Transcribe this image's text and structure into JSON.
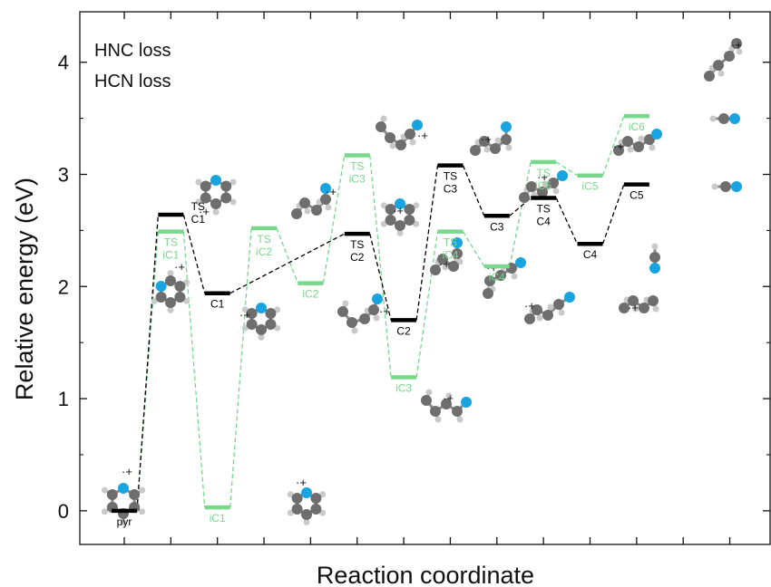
{
  "chart_data": {
    "type": "energy-level-diagram",
    "xlabel": "Reaction coordinate",
    "ylabel": "Relative energy (eV)",
    "ylim": [
      -0.3,
      4.45
    ],
    "yticks": [
      0,
      1,
      2,
      3,
      4
    ],
    "x_slots": 14,
    "colors": {
      "hnc": "#77d88c",
      "hcn": "#000000",
      "atom_c": "#6e6e6e",
      "atom_n": "#18a4e0",
      "atom_h": "#c9c9c9"
    },
    "legend": [
      {
        "label": "HNC loss",
        "color": "#77d88c"
      },
      {
        "label": "HCN loss",
        "color": "#000000"
      }
    ],
    "series": [
      {
        "name": "HNC loss",
        "color": "#77d88c",
        "levels": [
          {
            "id": "pyr",
            "x": 1,
            "y": 0.0,
            "label": []
          },
          {
            "id": "ts-ic1",
            "x": 2,
            "y": 2.49,
            "label": [
              "TS",
              "iC1"
            ]
          },
          {
            "id": "ic1",
            "x": 3,
            "y": 0.03,
            "label": [
              "iC1"
            ]
          },
          {
            "id": "ts-ic2",
            "x": 4,
            "y": 2.52,
            "label": [
              "TS",
              "iC2"
            ]
          },
          {
            "id": "ic2",
            "x": 5,
            "y": 2.03,
            "label": [
              "iC2"
            ]
          },
          {
            "id": "ts-ic3",
            "x": 6,
            "y": 3.17,
            "label": [
              "TS",
              "iC3"
            ]
          },
          {
            "id": "ic3",
            "x": 7,
            "y": 1.19,
            "label": [
              "iC3"
            ]
          },
          {
            "id": "ts-ic4",
            "x": 8,
            "y": 2.49,
            "label": [
              "TS",
              "iC4"
            ]
          },
          {
            "id": "ic4",
            "x": 9,
            "y": 2.18,
            "label": [
              "iC4"
            ]
          },
          {
            "id": "ts-ic5",
            "x": 10,
            "y": 3.11,
            "label": [
              "TS",
              "iC5"
            ]
          },
          {
            "id": "ic5",
            "x": 11,
            "y": 2.99,
            "label": [
              "iC5"
            ]
          },
          {
            "id": "ic6",
            "x": 12,
            "y": 3.52,
            "label": [
              "iC6"
            ]
          }
        ]
      },
      {
        "name": "HCN loss",
        "color": "#000000",
        "levels": [
          {
            "id": "pyr",
            "x": 1,
            "y": 0.0,
            "label": [
              "pyr"
            ]
          },
          {
            "id": "ts-c1",
            "x": 2,
            "y": 2.64,
            "label": [
              "TS",
              "C1"
            ]
          },
          {
            "id": "c1",
            "x": 3,
            "y": 1.94,
            "label": [
              "C1"
            ]
          },
          {
            "id": "ts-c2",
            "x": 6,
            "y": 2.47,
            "label": [
              "TS",
              "C2"
            ]
          },
          {
            "id": "c2",
            "x": 7,
            "y": 1.7,
            "label": [
              "C2"
            ]
          },
          {
            "id": "ts-c3",
            "x": 8,
            "y": 3.08,
            "label": [
              "TS",
              "C3"
            ]
          },
          {
            "id": "c3",
            "x": 9,
            "y": 2.63,
            "label": [
              "C3"
            ]
          },
          {
            "id": "ts-c4",
            "x": 10,
            "y": 2.79,
            "label": [
              "TS",
              "C4"
            ]
          },
          {
            "id": "c4",
            "x": 11,
            "y": 2.38,
            "label": [
              "C4"
            ]
          },
          {
            "id": "c5",
            "x": 12,
            "y": 2.91,
            "label": [
              "C5"
            ]
          }
        ]
      }
    ],
    "radical_marks": [
      "·+"
    ]
  }
}
